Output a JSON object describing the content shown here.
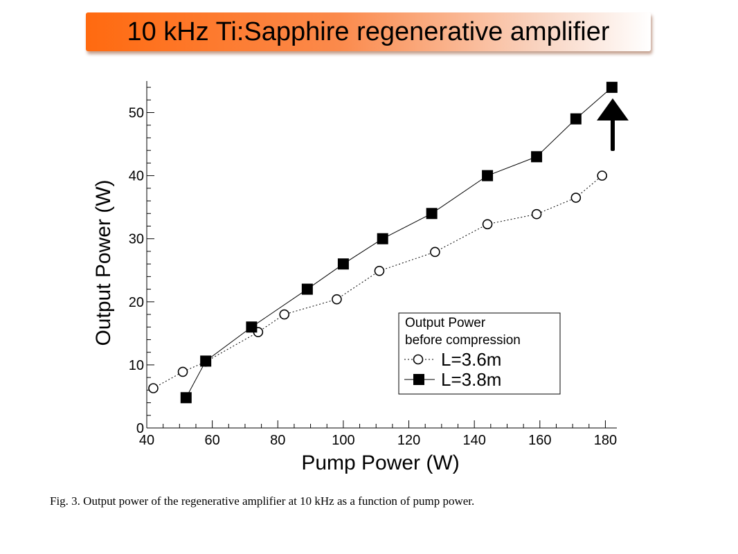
{
  "slide": {
    "title": "10 kHz Ti:Sapphire regenerative amplifier",
    "caption": "Fig. 3. Output power of the regenerative amplifier at 10 kHz as a function of pump power.",
    "banner_colors": [
      "#ff6a10",
      "#ffffff"
    ]
  },
  "chart_data": {
    "type": "line",
    "xlabel": "Pump Power  (W)",
    "ylabel": "Output Power (W)",
    "xlim": [
      40,
      180
    ],
    "ylim": [
      0,
      55
    ],
    "xticks": [
      40,
      60,
      80,
      100,
      120,
      140,
      160,
      180
    ],
    "yticks": [
      0,
      10,
      20,
      30,
      40,
      50
    ],
    "grid": false,
    "legend": {
      "position": "bottom-right",
      "title_lines": [
        "Output Power",
        "before compression"
      ]
    },
    "series": [
      {
        "name": "L=3.6m",
        "marker": "open-circle",
        "line": "dotted",
        "x": [
          42,
          51,
          58,
          74,
          82,
          98,
          111,
          128,
          144,
          159,
          171,
          179
        ],
        "y": [
          6.3,
          8.9,
          10.5,
          15.2,
          18,
          20.4,
          24.9,
          27.9,
          32.3,
          33.9,
          36.5,
          40
        ]
      },
      {
        "name": "L=3.8m",
        "marker": "filled-square",
        "line": "solid",
        "x": [
          52,
          58,
          72,
          89,
          100,
          112,
          127,
          144,
          159,
          171,
          182
        ],
        "y": [
          4.8,
          10.6,
          16,
          22,
          26,
          30,
          34,
          40,
          43,
          49,
          54
        ]
      }
    ]
  }
}
